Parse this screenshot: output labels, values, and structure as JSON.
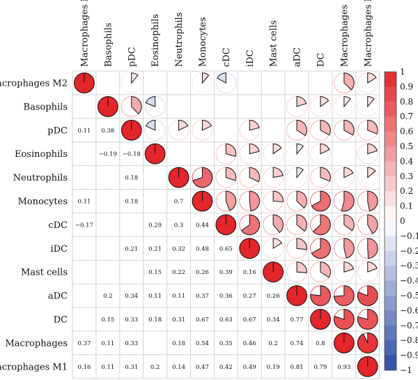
{
  "chart_data": {
    "type": "heatmap",
    "style": "correlogram-pie",
    "variables": [
      "Macrophages M2",
      "Basophils",
      "pDC",
      "Eosinophils",
      "Neutrophils",
      "Monocytes",
      "cDC",
      "iDC",
      "Mast cells",
      "aDC",
      "DC",
      "Macrophages",
      "Macrophages M1"
    ],
    "matrix": [
      [
        1,
        null,
        0.11,
        null,
        null,
        0.11,
        -0.17,
        null,
        null,
        null,
        null,
        0.37,
        0.16
      ],
      [
        null,
        1,
        0.38,
        -0.19,
        null,
        null,
        null,
        null,
        null,
        0.2,
        0.15,
        0.11,
        0.11
      ],
      [
        0.11,
        0.38,
        1,
        -0.18,
        0.18,
        0.18,
        null,
        0.21,
        null,
        0.34,
        0.33,
        0.33,
        0.31
      ],
      [
        null,
        -0.19,
        -0.18,
        1,
        null,
        null,
        0.29,
        0.21,
        0.15,
        0.11,
        0.18,
        null,
        0.2
      ],
      [
        null,
        null,
        0.18,
        null,
        1,
        0.7,
        0.3,
        0.32,
        0.22,
        0.11,
        0.31,
        0.18,
        0.14
      ],
      [
        0.11,
        null,
        0.18,
        null,
        0.7,
        1,
        0.44,
        0.48,
        0.26,
        0.37,
        0.67,
        0.54,
        0.47
      ],
      [
        -0.17,
        null,
        null,
        0.29,
        0.3,
        0.44,
        1,
        0.65,
        0.39,
        0.36,
        0.63,
        0.35,
        0.42
      ],
      [
        null,
        null,
        0.21,
        0.21,
        0.32,
        0.48,
        0.65,
        1,
        0.16,
        0.27,
        0.67,
        0.46,
        0.49
      ],
      [
        null,
        null,
        null,
        0.15,
        0.22,
        0.26,
        0.39,
        0.16,
        1,
        0.26,
        0.34,
        0.2,
        0.19
      ],
      [
        null,
        0.2,
        0.34,
        0.11,
        0.11,
        0.37,
        0.36,
        0.27,
        0.26,
        1,
        0.77,
        0.74,
        0.81
      ],
      [
        null,
        0.15,
        0.33,
        0.18,
        0.31,
        0.67,
        0.63,
        0.67,
        0.34,
        0.77,
        1,
        0.8,
        0.79
      ],
      [
        0.37,
        0.11,
        0.33,
        null,
        0.18,
        0.54,
        0.35,
        0.46,
        0.2,
        0.74,
        0.8,
        1,
        0.93
      ],
      [
        0.16,
        0.11,
        0.31,
        0.2,
        0.14,
        0.47,
        0.42,
        0.49,
        0.19,
        0.81,
        0.79,
        0.93,
        1
      ]
    ],
    "upper_triangle": "pie",
    "lower_triangle": "number",
    "colorbar": {
      "range": [
        -1,
        1
      ],
      "ticks": [
        "1",
        "0.9",
        "0.8",
        "0.7",
        "0.6",
        "0.5",
        "0.4",
        "0.3",
        "0.2",
        "0.1",
        "0",
        "-0.1",
        "-0.2",
        "-0.3",
        "-0.4",
        "-0.5",
        "-0.6",
        "-0.7",
        "-0.8",
        "-0.9",
        "-1"
      ],
      "placement": "right",
      "colors": {
        "negative": "#2b4ba5",
        "zero": "#ffffff",
        "positive": "#e3262b"
      }
    },
    "grid": true
  }
}
